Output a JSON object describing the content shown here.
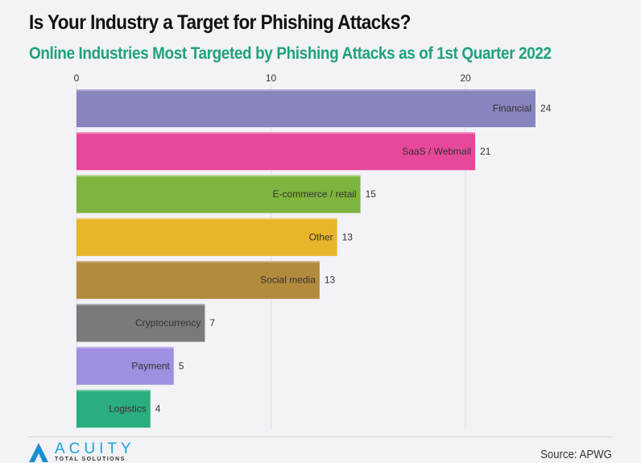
{
  "title": "Is Your Industry a Target for Phishing Attacks?",
  "subtitle": "Online Industries Most Targeted by Phishing Attacks as of 1st Quarter 2022",
  "source": "Source: APWG",
  "logo": {
    "word": "ACUITY",
    "sub": "TOTAL SOLUTIONS"
  },
  "chart_data": {
    "type": "bar",
    "orientation": "horizontal",
    "categories": [
      "Financial",
      "SaaS / Webmail",
      "E-commerce / retail",
      "Other",
      "Social media",
      "Cryptocurrency",
      "Payment",
      "Logistics"
    ],
    "values": [
      23.6,
      20.5,
      14.6,
      13.4,
      12.5,
      6.6,
      5.0,
      3.8
    ],
    "data_labels": [
      "24",
      "21",
      "15",
      "13",
      "13",
      "7",
      "5",
      "4"
    ],
    "colors": [
      "#8884bd",
      "#e8489a",
      "#7db53e",
      "#e9b52b",
      "#b38b3d",
      "#7a7a7a",
      "#a08ee0",
      "#2aae7d"
    ],
    "x_ticks": [
      "0",
      "10",
      "20"
    ],
    "tick_values": [
      0,
      10,
      20
    ],
    "xlim": [
      0,
      27.5
    ],
    "grid": true,
    "axis_position": "top"
  }
}
